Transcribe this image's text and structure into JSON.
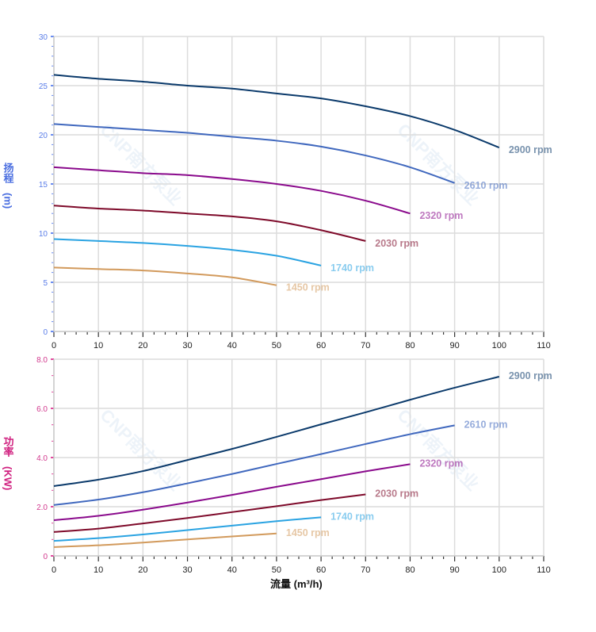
{
  "watermark": "CNP南方泵业",
  "chart_data": [
    {
      "type": "line",
      "ylabel": [
        "扬程",
        "(m)"
      ],
      "xlabel": "",
      "xlim": [
        0,
        110
      ],
      "ylim": [
        0,
        30
      ],
      "xticks": [
        "0",
        "10",
        "20",
        "30",
        "40",
        "50",
        "60",
        "70",
        "80",
        "90",
        "100",
        "110"
      ],
      "yticks": [
        "0",
        "5",
        "10",
        "15",
        "20",
        "25",
        "30"
      ],
      "grid": true,
      "legend": "inline-end-labels",
      "series": [
        {
          "name": "2900 rpm",
          "color": "#0b3a6b",
          "x": [
            0,
            10,
            20,
            30,
            40,
            50,
            60,
            70,
            80,
            90,
            100
          ],
          "y": [
            26.1,
            25.7,
            25.4,
            25.0,
            24.7,
            24.2,
            23.7,
            22.9,
            21.9,
            20.5,
            18.7
          ]
        },
        {
          "name": "2610 rpm",
          "color": "#4068be",
          "x": [
            0,
            10,
            20,
            30,
            40,
            50,
            60,
            70,
            80,
            90
          ],
          "y": [
            21.1,
            20.8,
            20.5,
            20.2,
            19.8,
            19.4,
            18.8,
            17.9,
            16.7,
            15.1
          ]
        },
        {
          "name": "2320 rpm",
          "color": "#8a0a8c",
          "x": [
            0,
            10,
            20,
            30,
            40,
            50,
            60,
            70,
            80
          ],
          "y": [
            16.7,
            16.4,
            16.1,
            15.9,
            15.5,
            15.0,
            14.3,
            13.3,
            12.0
          ]
        },
        {
          "name": "2030 rpm",
          "color": "#7e0a2a",
          "x": [
            0,
            10,
            20,
            30,
            40,
            50,
            60,
            70
          ],
          "y": [
            12.8,
            12.5,
            12.3,
            12.0,
            11.7,
            11.2,
            10.3,
            9.2
          ]
        },
        {
          "name": "1740 rpm",
          "color": "#2aa3e2",
          "x": [
            0,
            10,
            20,
            30,
            40,
            50,
            60
          ],
          "y": [
            9.4,
            9.2,
            9.0,
            8.7,
            8.3,
            7.7,
            6.7
          ]
        },
        {
          "name": "1450 rpm",
          "color": "#d29a5c",
          "x": [
            0,
            10,
            20,
            30,
            40,
            50
          ],
          "y": [
            6.5,
            6.35,
            6.2,
            5.9,
            5.5,
            4.7
          ]
        }
      ]
    },
    {
      "type": "line",
      "ylabel": [
        "功率",
        "(KW)"
      ],
      "xlabel": "流量 (m³/h)",
      "xlim": [
        0,
        110
      ],
      "ylim": [
        0,
        8
      ],
      "xticks": [
        "0",
        "10",
        "20",
        "30",
        "40",
        "50",
        "60",
        "70",
        "80",
        "90",
        "100",
        "110"
      ],
      "yticks": [
        "0",
        "2.0",
        "4.0",
        "6.0",
        "8.0"
      ],
      "grid": true,
      "legend": "inline-end-labels",
      "series": [
        {
          "name": "2900 rpm",
          "color": "#0b3a6b",
          "x": [
            0,
            10,
            20,
            30,
            40,
            50,
            60,
            70,
            80,
            90,
            100
          ],
          "y": [
            2.84,
            3.1,
            3.45,
            3.9,
            4.35,
            4.84,
            5.35,
            5.84,
            6.35,
            6.84,
            7.29
          ]
        },
        {
          "name": "2610 rpm",
          "color": "#4068be",
          "x": [
            0,
            10,
            20,
            30,
            40,
            50,
            60,
            70,
            80,
            90
          ],
          "y": [
            2.07,
            2.29,
            2.59,
            2.95,
            3.33,
            3.74,
            4.14,
            4.55,
            4.95,
            5.31
          ]
        },
        {
          "name": "2320 rpm",
          "color": "#8a0a8c",
          "x": [
            0,
            10,
            20,
            30,
            40,
            50,
            60,
            70,
            80
          ],
          "y": [
            1.45,
            1.63,
            1.88,
            2.17,
            2.48,
            2.81,
            3.12,
            3.44,
            3.73
          ]
        },
        {
          "name": "2030 rpm",
          "color": "#7e0a2a",
          "x": [
            0,
            10,
            20,
            30,
            40,
            50,
            60,
            70
          ],
          "y": [
            0.97,
            1.11,
            1.32,
            1.54,
            1.78,
            2.02,
            2.27,
            2.5
          ]
        },
        {
          "name": "1740 rpm",
          "color": "#2aa3e2",
          "x": [
            0,
            10,
            20,
            30,
            40,
            50,
            60
          ],
          "y": [
            0.61,
            0.72,
            0.87,
            1.05,
            1.23,
            1.41,
            1.57
          ]
        },
        {
          "name": "1450 rpm",
          "color": "#d29a5c",
          "x": [
            0,
            10,
            20,
            30,
            40,
            50
          ],
          "y": [
            0.36,
            0.43,
            0.54,
            0.67,
            0.79,
            0.91
          ]
        }
      ]
    }
  ]
}
